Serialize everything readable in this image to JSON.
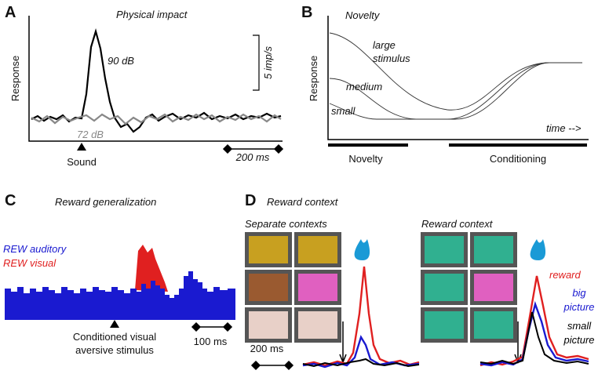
{
  "panel_a": {
    "letter": "A",
    "title": "Physical impact",
    "y_label": "Response",
    "trace_high": "90 dB",
    "trace_low": "72 dB",
    "scale": "5 imp/s",
    "event": "Sound",
    "time_scale": "200 ms"
  },
  "panel_b": {
    "letter": "B",
    "title": "Novelty",
    "y_label": "Response",
    "curves": [
      [
        "large",
        "stimulus"
      ],
      [
        "medium"
      ],
      [
        "small"
      ]
    ],
    "x_label": "time -->",
    "phases": [
      "Novelty",
      "Conditioning"
    ]
  },
  "panel_c": {
    "letter": "C",
    "title": "Reward generalization",
    "legend": [
      "REW auditory",
      "REW visual"
    ],
    "event": [
      "Conditioned visual",
      "aversive stimulus"
    ],
    "time_scale": "100 ms"
  },
  "panel_d": {
    "letter": "D",
    "title": "Reward context",
    "groups": [
      "Separate contexts",
      "Reward context"
    ],
    "time_scale": "200 ms",
    "traces": [
      [
        "reward"
      ],
      [
        "big",
        "picture"
      ],
      [
        "small",
        "picture"
      ]
    ]
  }
}
